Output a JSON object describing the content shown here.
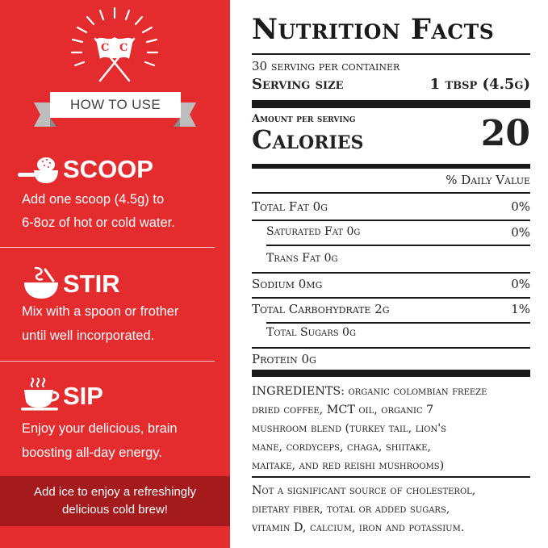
{
  "colors": {
    "panel_red": "#e42b2e",
    "tip_dark_red": "#a41a1d",
    "text_dark": "#222222"
  },
  "left": {
    "logo": {
      "flag_letters": [
        "C",
        "C"
      ]
    },
    "banner_label": "HOW TO USE",
    "steps": [
      {
        "icon": "scoop-icon",
        "title": "SCOOP",
        "line1": "Add one scoop (4.5g) to",
        "line2": "6-8oz of hot or cold water."
      },
      {
        "icon": "stir-icon",
        "title": "STIR",
        "line1": "Mix with a spoon or frother",
        "line2": "until well incorporated."
      },
      {
        "icon": "cup-icon",
        "title": "SIP",
        "line1": "Enjoy your delicious, brain",
        "line2": "boosting all-day energy."
      }
    ],
    "tip_line1": "Add ice to enjoy a refreshingly",
    "tip_line2": "delicious cold brew!"
  },
  "nutrition": {
    "title": "Nutrition Facts",
    "servings_per_container": "30 serving per container",
    "serving_size_label": "Serving size",
    "serving_size_value": "1 tbsp (4.5g)",
    "amount_per_serving": "Amount per serving",
    "calories_label": "Calories",
    "calories_value": "20",
    "daily_value_header": "% Daily Value",
    "rows": [
      {
        "label": "Total Fat 0g",
        "dv": "0%"
      },
      {
        "label": "Saturated Fat 0g",
        "dv": "0%"
      },
      {
        "label": "Trans Fat 0g",
        "dv": ""
      },
      {
        "label": "Sodium 0mg",
        "dv": "0%"
      },
      {
        "label": "Total Carbohydrate 2g",
        "dv": "1%"
      },
      {
        "label": "Total Sugars 0g",
        "dv": ""
      },
      {
        "label": "Protein 0g",
        "dv": ""
      }
    ],
    "ingredients_label": "INGREDIENTS:",
    "ingredients_lines": [
      "organic colombian freeze",
      "dried coffee, MCT oil, organic 7",
      "mushroom blend (turkey tail, lion's",
      "mane, cordyceps, chaga, shiitake,",
      "maitake, and red reishi mushrooms)"
    ],
    "note_lines": [
      "Not a significant source of cholesterol,",
      "dietary fiber, total or added sugars,",
      "vitamin D, calcium, iron and potassium."
    ]
  }
}
